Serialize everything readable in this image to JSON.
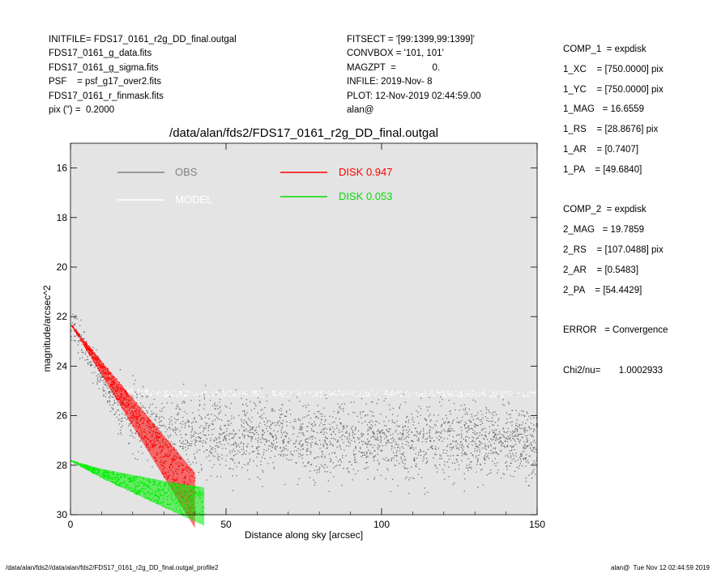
{
  "header_left": [
    "INITFILE= FDS17_0161_r2g_DD_final.outgal",
    "FDS17_0161_g_data.fits",
    "FDS17_0161_g_sigma.fits",
    "PSF    = psf_g17_over2.fits",
    "FDS17_0161_r_finmask.fits",
    "pix (\") =  0.2000"
  ],
  "header_mid": [
    "FITSECT = '[99:1399,99:1399]'",
    "CONVBOX = '101, 101'",
    "MAGZPT  =              0.",
    "INFILE: 2019-Nov- 8",
    "PLOT: 12-Nov-2019 02:44:59.00",
    "alan@"
  ],
  "header_right": [
    "COMP_1  = expdisk",
    "1_XC    = [750.0000] pix",
    "1_YC    = [750.0000] pix",
    "1_MAG   = 16.6559",
    "1_RS    = [28.8676] pix",
    "1_AR    = [0.7407]",
    "1_PA    = [49.6840]",
    "",
    "COMP_2  = expdisk",
    "2_MAG   = 19.7859",
    "2_RS    = [107.0488] pix",
    "2_AR    = [0.5483]",
    "2_PA    = [54.4429]",
    "",
    "ERROR   = Convergence",
    "",
    "Chi2/nu=       1.0002933"
  ],
  "footer_left": "/data/alan/fds2//data/alan/fds2/FDS17_0161_r2g_DD_final.outgal_profile2",
  "footer_right": "alan@  Tue Nov 12 02:44:59 2019",
  "colors": {
    "plot_bg": "#e4e4e4",
    "obs": "#6e6e6e",
    "model": "#ffffff",
    "disk1": "#ff0000",
    "disk2": "#00ee00"
  },
  "chart_data": {
    "type": "scatter",
    "title": "/data/alan/fds2/FDS17_0161_r2g_DD_final.outgal",
    "xlabel": "Distance along sky [arcsec]",
    "ylabel": "magnitude/arcsec^2",
    "xlim": [
      0,
      150
    ],
    "ylim": [
      30,
      15
    ],
    "xticks": [
      0,
      50,
      100,
      150
    ],
    "yticks": [
      16,
      18,
      20,
      22,
      24,
      26,
      28,
      30
    ],
    "grid": false,
    "legend_placement": "top-left",
    "series": [
      {
        "name": "OBS",
        "description": "noisy point cloud, approx mean profile",
        "x": [
          1,
          3,
          6,
          9,
          12,
          15,
          20,
          30,
          50,
          75,
          100,
          125,
          150
        ],
        "y": [
          22.6,
          22.9,
          23.5,
          24.3,
          25.0,
          25.6,
          26.1,
          26.6,
          26.8,
          26.9,
          27.0,
          27.0,
          27.1
        ]
      },
      {
        "name": "MODEL",
        "x": [
          0,
          5,
          10,
          15,
          20,
          30,
          50,
          100,
          150
        ],
        "y": [
          22.3,
          23.3,
          24.2,
          24.8,
          25.0,
          25.1,
          25.1,
          25.1,
          25.1
        ]
      },
      {
        "name": "DISK  0.947",
        "x": [
          0,
          10,
          20,
          30,
          40
        ],
        "y": [
          22.3,
          24.2,
          26.1,
          28.0,
          29.9
        ]
      },
      {
        "name": "DISK  0.053",
        "x": [
          0,
          10,
          20,
          30,
          43
        ],
        "y": [
          27.8,
          28.4,
          28.9,
          29.4,
          30.0
        ]
      }
    ],
    "legend": [
      {
        "label": "OBS",
        "color": "#7f7f7f"
      },
      {
        "label": "MODEL",
        "color": "#ffffff"
      },
      {
        "label": "DISK  0.947",
        "color": "#ff0000"
      },
      {
        "label": "DISK  0.053",
        "color": "#00dd00"
      }
    ]
  }
}
